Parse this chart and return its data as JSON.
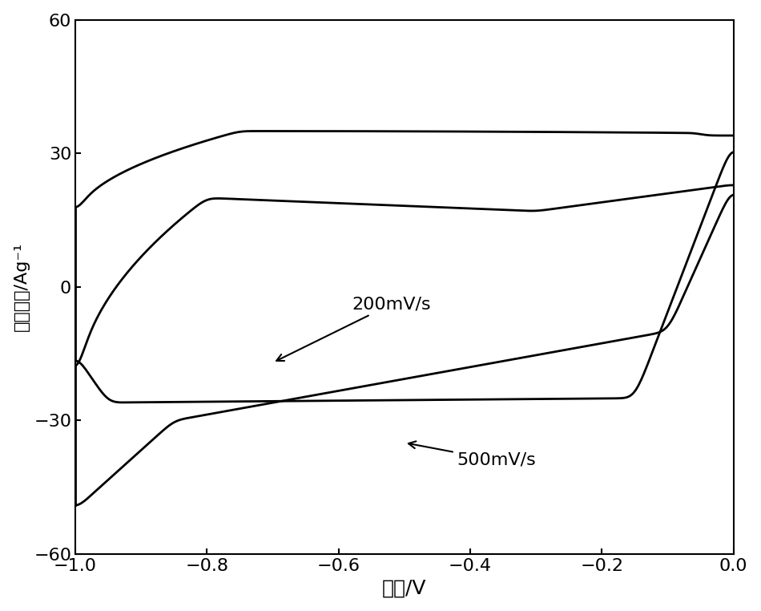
{
  "title": "",
  "xlabel": "电压/V",
  "ylabel": "电流密度/Ag⁻¹",
  "xlim": [
    -1.0,
    0.0
  ],
  "ylim": [
    -60,
    60
  ],
  "xticks": [
    -1.0,
    -0.8,
    -0.6,
    -0.4,
    -0.2,
    0.0
  ],
  "yticks": [
    -60,
    -30,
    0,
    30,
    60
  ],
  "label_200": "200mV/s",
  "label_500": "500mV/s",
  "line_color": "#000000",
  "background_color": "#ffffff",
  "xlabel_fontsize": 18,
  "ylabel_fontsize": 16,
  "tick_fontsize": 16,
  "annotation_fontsize": 16
}
